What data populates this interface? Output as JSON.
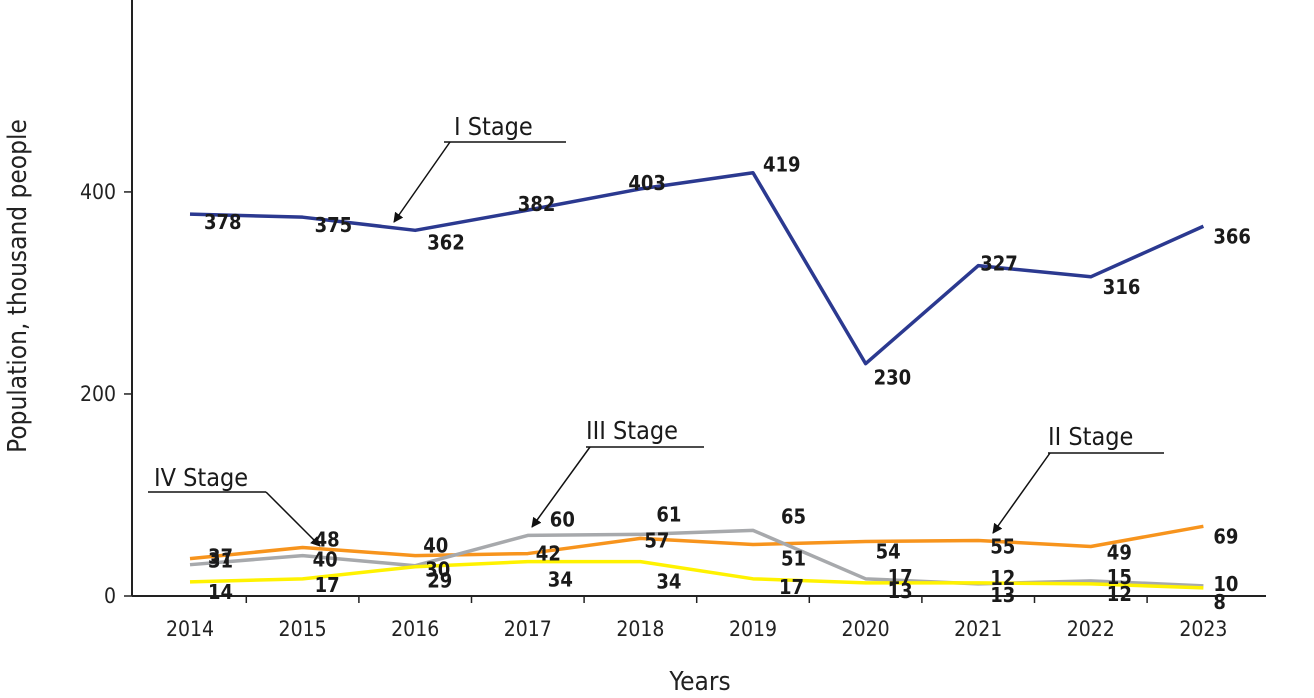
{
  "chart_data": {
    "type": "line",
    "title": "",
    "xlabel": "Years",
    "ylabel": "Population, thousand people",
    "ylim": [
      0,
      590
    ],
    "yticks": [
      0,
      200,
      400
    ],
    "categories": [
      "2014",
      "2015",
      "2016",
      "2017",
      "2018",
      "2019",
      "2020",
      "2021",
      "2022",
      "2023"
    ],
    "series": [
      {
        "name": "I Stage",
        "color": "#2b3990",
        "values": [
          378,
          375,
          362,
          382,
          403,
          419,
          230,
          327,
          316,
          366
        ]
      },
      {
        "name": "II Stage",
        "color": "#f7941d",
        "values": [
          37,
          48,
          40,
          42,
          57,
          51,
          54,
          55,
          49,
          69
        ]
      },
      {
        "name": "III Stage",
        "color": "#a7a9ac",
        "values": [
          31,
          40,
          30,
          60,
          61,
          65,
          17,
          12,
          15,
          10
        ]
      },
      {
        "name": "IV Stage",
        "color": "#fff200",
        "values": [
          14,
          17,
          29,
          34,
          34,
          17,
          13,
          13,
          12,
          8
        ]
      }
    ],
    "annotations": [
      "I Stage",
      "II Stage",
      "III Stage",
      "IV Stage"
    ]
  }
}
